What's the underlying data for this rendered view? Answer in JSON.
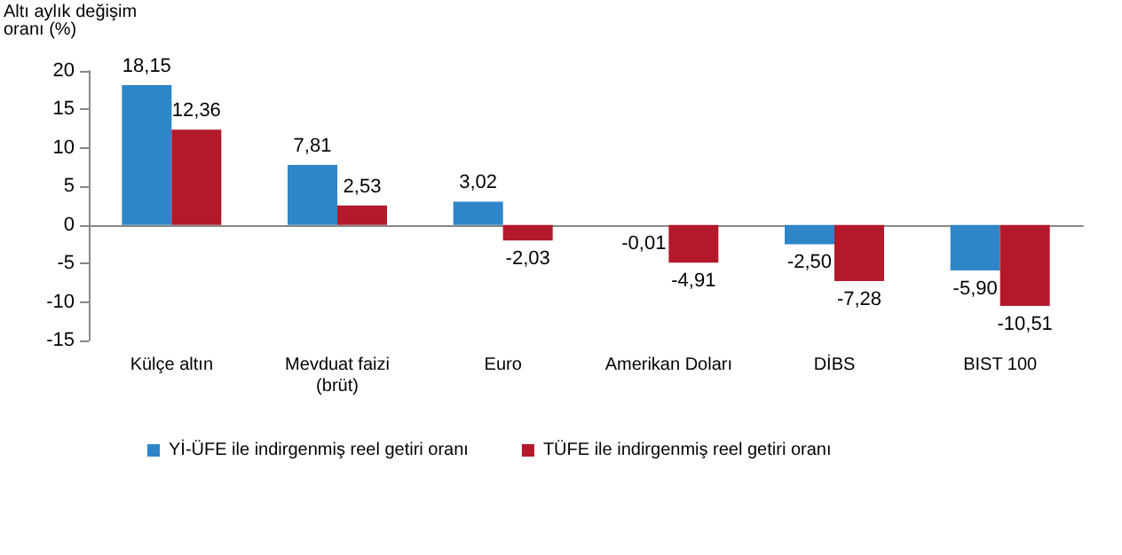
{
  "chart_data": {
    "type": "bar",
    "ylabel": "Altı aylık değişim\noranı (%)",
    "categories": [
      "Külçe altın",
      "Mevduat faizi\n(brüt)",
      "Euro",
      "Amerikan Doları",
      "DİBS",
      "BIST 100"
    ],
    "series": [
      {
        "name": "Yİ-ÜFE ile indirgenmiş reel getiri oranı",
        "color": "#2e86c9",
        "values": [
          18.15,
          7.81,
          3.02,
          -0.01,
          -2.5,
          -5.9
        ],
        "value_labels": [
          "18,15",
          "7,81",
          "3,02",
          "-0,01",
          "-2,50",
          "-5,90"
        ]
      },
      {
        "name": "TÜFE ile indirgenmiş reel getiri oranı",
        "color": "#b3192a",
        "values": [
          12.36,
          2.53,
          -2.03,
          -4.91,
          -7.28,
          -10.51
        ],
        "value_labels": [
          "12,36",
          "2,53",
          "-2,03",
          "-4,91",
          "-7,28",
          "-10,51"
        ]
      }
    ],
    "ylim": [
      -15,
      20
    ],
    "yticks": [
      -15,
      -10,
      -5,
      0,
      5,
      10,
      15,
      20
    ],
    "legend": "bottom left"
  }
}
